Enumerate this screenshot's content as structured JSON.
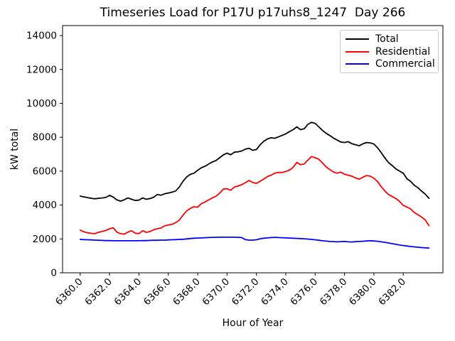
{
  "chart_data": {
    "type": "line",
    "title": "Timeseries Load for P17U p17uhs8_1247  Day 266",
    "xlabel": "Hour of Year",
    "ylabel": "kW total",
    "xlim": [
      6358.8,
      6384.7
    ],
    "ylim": [
      0,
      14590
    ],
    "grid": false,
    "legend_position": "upper right",
    "x": [
      6360.0,
      6360.25,
      6360.5,
      6360.75,
      6361.0,
      6361.25,
      6361.5,
      6361.75,
      6362.0,
      6362.25,
      6362.5,
      6362.75,
      6363.0,
      6363.25,
      6363.5,
      6363.75,
      6364.0,
      6364.25,
      6364.5,
      6364.75,
      6365.0,
      6365.25,
      6365.5,
      6365.75,
      6366.0,
      6366.25,
      6366.5,
      6366.75,
      6367.0,
      6367.25,
      6367.5,
      6367.75,
      6368.0,
      6368.25,
      6368.5,
      6368.75,
      6369.0,
      6369.25,
      6369.5,
      6369.75,
      6370.0,
      6370.25,
      6370.5,
      6370.75,
      6371.0,
      6371.25,
      6371.5,
      6371.75,
      6372.0,
      6372.25,
      6372.5,
      6372.75,
      6373.0,
      6373.25,
      6373.5,
      6373.75,
      6374.0,
      6374.25,
      6374.5,
      6374.75,
      6375.0,
      6375.25,
      6375.5,
      6375.75,
      6376.0,
      6376.25,
      6376.5,
      6376.75,
      6377.0,
      6377.25,
      6377.5,
      6377.75,
      6378.0,
      6378.25,
      6378.5,
      6378.75,
      6379.0,
      6379.25,
      6379.5,
      6379.75,
      6380.0,
      6380.25,
      6380.5,
      6380.75,
      6381.0,
      6381.25,
      6381.5,
      6381.75,
      6382.0,
      6382.25,
      6382.5,
      6382.75,
      6383.0,
      6383.25,
      6383.5,
      6383.75
    ],
    "series": [
      {
        "name": "Total",
        "color": "#000000",
        "values": [
          4530,
          4480,
          4440,
          4400,
          4370,
          4400,
          4420,
          4450,
          4570,
          4470,
          4300,
          4230,
          4310,
          4420,
          4340,
          4270,
          4290,
          4420,
          4340,
          4380,
          4460,
          4620,
          4580,
          4660,
          4710,
          4760,
          4830,
          5060,
          5400,
          5650,
          5810,
          5880,
          6050,
          6200,
          6290,
          6420,
          6540,
          6630,
          6790,
          6960,
          7060,
          6970,
          7120,
          7140,
          7190,
          7300,
          7350,
          7230,
          7280,
          7550,
          7760,
          7900,
          7970,
          7940,
          8020,
          8110,
          8200,
          8330,
          8450,
          8610,
          8450,
          8500,
          8760,
          8880,
          8820,
          8610,
          8400,
          8230,
          8100,
          7950,
          7830,
          7720,
          7690,
          7740,
          7620,
          7560,
          7500,
          7610,
          7690,
          7670,
          7600,
          7380,
          7090,
          6780,
          6500,
          6330,
          6130,
          6000,
          5880,
          5550,
          5390,
          5170,
          5020,
          4820,
          4640,
          4400
        ]
      },
      {
        "name": "Residential",
        "color": "#ff0000",
        "values": [
          2520,
          2420,
          2360,
          2330,
          2310,
          2390,
          2440,
          2500,
          2600,
          2660,
          2400,
          2310,
          2280,
          2400,
          2480,
          2340,
          2310,
          2480,
          2390,
          2430,
          2540,
          2600,
          2640,
          2770,
          2820,
          2860,
          2960,
          3110,
          3400,
          3650,
          3800,
          3900,
          3870,
          4080,
          4180,
          4300,
          4420,
          4520,
          4700,
          4940,
          4960,
          4870,
          5060,
          5120,
          5200,
          5320,
          5450,
          5330,
          5280,
          5400,
          5530,
          5680,
          5760,
          5880,
          5920,
          5920,
          5980,
          6060,
          6220,
          6510,
          6380,
          6420,
          6650,
          6860,
          6790,
          6700,
          6480,
          6250,
          6090,
          5950,
          5880,
          5940,
          5820,
          5760,
          5700,
          5600,
          5520,
          5640,
          5740,
          5700,
          5580,
          5380,
          5080,
          4830,
          4620,
          4500,
          4380,
          4210,
          3980,
          3880,
          3770,
          3560,
          3430,
          3290,
          3120,
          2780
        ]
      },
      {
        "name": "Commercial",
        "color": "#0000ff",
        "values": [
          1970,
          1960,
          1950,
          1940,
          1930,
          1920,
          1910,
          1900,
          1900,
          1890,
          1890,
          1890,
          1890,
          1890,
          1890,
          1890,
          1890,
          1900,
          1900,
          1910,
          1920,
          1920,
          1930,
          1930,
          1940,
          1950,
          1960,
          1970,
          1980,
          2000,
          2020,
          2040,
          2050,
          2060,
          2070,
          2080,
          2090,
          2090,
          2100,
          2100,
          2100,
          2100,
          2100,
          2090,
          2080,
          1960,
          1930,
          1930,
          1950,
          2010,
          2040,
          2060,
          2080,
          2090,
          2080,
          2070,
          2060,
          2050,
          2040,
          2030,
          2020,
          2010,
          1990,
          1970,
          1950,
          1920,
          1890,
          1870,
          1850,
          1840,
          1830,
          1840,
          1850,
          1830,
          1820,
          1840,
          1850,
          1860,
          1880,
          1890,
          1880,
          1860,
          1830,
          1800,
          1760,
          1720,
          1680,
          1640,
          1610,
          1580,
          1550,
          1530,
          1510,
          1490,
          1470,
          1460
        ]
      }
    ],
    "xticks": [
      {
        "value": 6360,
        "label": "6360.0"
      },
      {
        "value": 6362,
        "label": "6362.0"
      },
      {
        "value": 6364,
        "label": "6364.0"
      },
      {
        "value": 6366,
        "label": "6366.0"
      },
      {
        "value": 6368,
        "label": "6368.0"
      },
      {
        "value": 6370,
        "label": "6370.0"
      },
      {
        "value": 6372,
        "label": "6372.0"
      },
      {
        "value": 6374,
        "label": "6374.0"
      },
      {
        "value": 6376,
        "label": "6376.0"
      },
      {
        "value": 6378,
        "label": "6378.0"
      },
      {
        "value": 6380,
        "label": "6380.0"
      },
      {
        "value": 6382,
        "label": "6382.0"
      }
    ],
    "yticks": [
      {
        "value": 0,
        "label": "0"
      },
      {
        "value": 2000,
        "label": "2000"
      },
      {
        "value": 4000,
        "label": "4000"
      },
      {
        "value": 6000,
        "label": "6000"
      },
      {
        "value": 8000,
        "label": "8000"
      },
      {
        "value": 10000,
        "label": "10000"
      },
      {
        "value": 12000,
        "label": "12000"
      },
      {
        "value": 14000,
        "label": "14000"
      }
    ]
  }
}
